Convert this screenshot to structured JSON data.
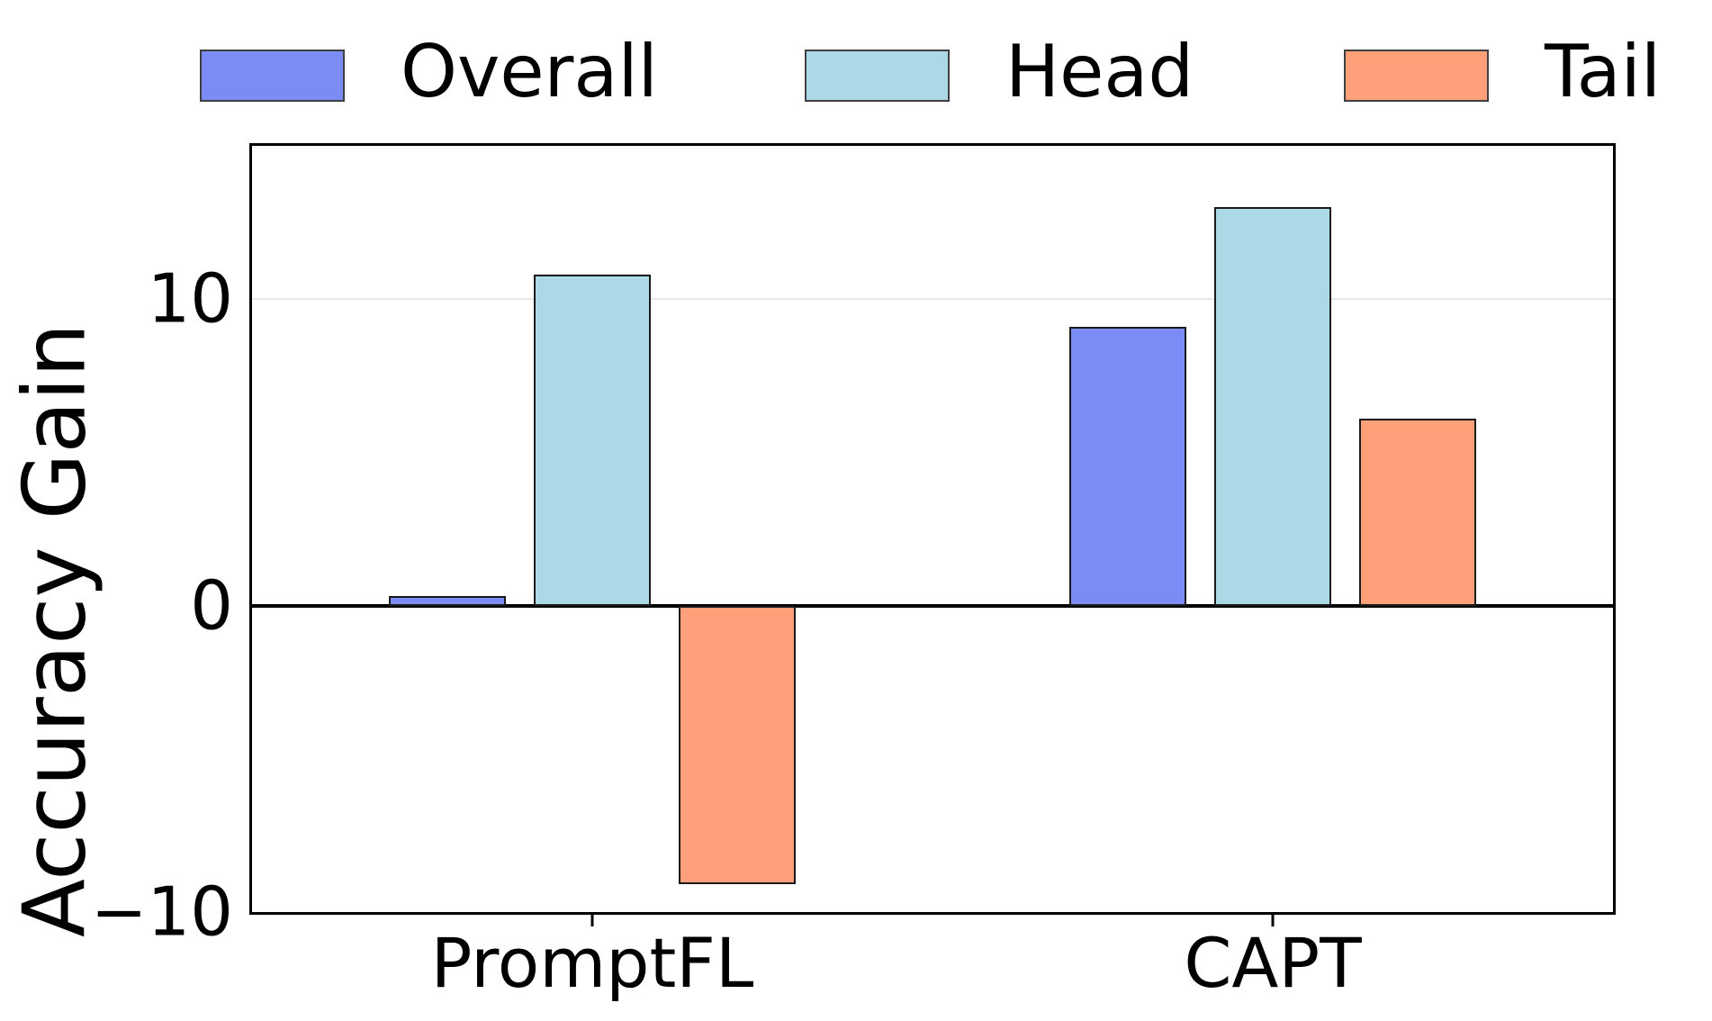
{
  "chart_data": {
    "type": "bar",
    "title": "",
    "xlabel": "",
    "ylabel": "Accuracy Gain",
    "categories": [
      "PromptFL",
      "CAPT"
    ],
    "series": [
      {
        "name": "Overall",
        "color": "#7b8cf7",
        "values": [
          0.3,
          9.1
        ]
      },
      {
        "name": "Head",
        "color": "#add8e6",
        "values": [
          10.8,
          13.0
        ]
      },
      {
        "name": "Tail",
        "color": "#ffa07a",
        "values": [
          -9.1,
          6.1
        ]
      }
    ],
    "ylim": [
      -10,
      15
    ],
    "yticks": [
      {
        "value": 10,
        "label": "10"
      },
      {
        "value": 0,
        "label": "0"
      },
      {
        "value": -10,
        "label": "−10"
      }
    ],
    "gridline_values": [
      10
    ],
    "zero_line": true,
    "grid": "horizontal-light",
    "legend_position": "top",
    "colors": {
      "bar_edge": "#1a1a1a",
      "gridline": "#e8e8e8",
      "axis": "#000000",
      "background": "#ffffff"
    }
  }
}
